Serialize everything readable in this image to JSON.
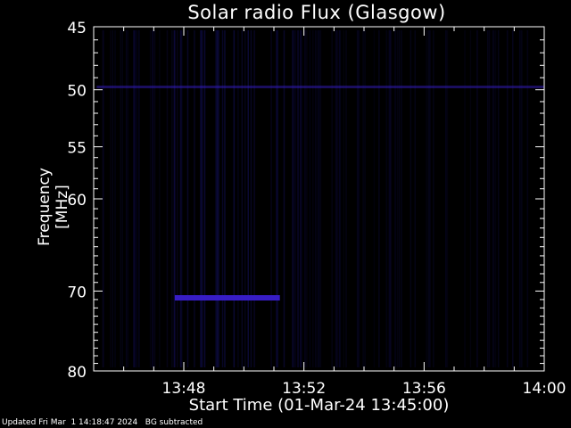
{
  "chart_data": {
    "type": "heatmap",
    "title": "Solar radio Flux (Glasgow)",
    "xlabel": "Start Time (01-Mar-24 13:45:00)",
    "ylabel": "Frequency [MHz]",
    "x_ticks": [
      "13:48",
      "13:52",
      "13:56",
      "14:00"
    ],
    "x_tick_minutes": [
      3,
      7,
      11,
      15
    ],
    "xlim_minutes": [
      0,
      15
    ],
    "y_ticks": [
      45,
      50,
      55,
      60,
      70,
      80
    ],
    "ylim": [
      45,
      80
    ],
    "y_scale": "log",
    "background": "#000000",
    "colors": {
      "axis": "#ffffff",
      "signal": "#3a1fd0",
      "faint": "#0c0a3c"
    },
    "features": [
      {
        "label": "burst_line",
        "freq_mhz": 70.8,
        "start_minute": 2.7,
        "end_minute": 6.2
      },
      {
        "label": "band_line",
        "freq_mhz": 49.8,
        "start_minute": 0.1,
        "end_minute": 15
      }
    ]
  },
  "footer": "Updated Fri Mar  1 14:18:47 2024   BG subtracted"
}
